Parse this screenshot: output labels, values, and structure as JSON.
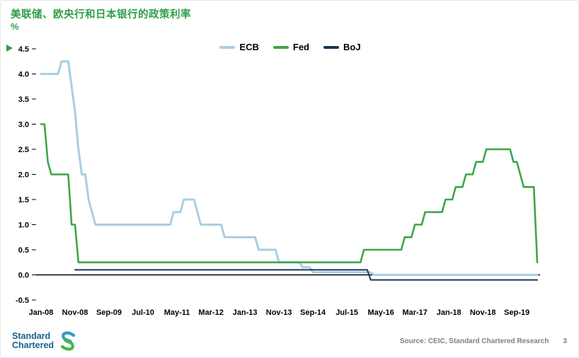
{
  "header": {
    "title": "美联储、欧央行和日本银行的政策利率",
    "unit": "%"
  },
  "chart_data": {
    "type": "line",
    "title": "美联储、欧央行和日本银行的政策利率",
    "ylabel": "%",
    "x_unit": "month",
    "x_start": "Jan-08",
    "x_end": "Mar-20",
    "x_ticks": [
      "Jan-08",
      "Nov-08",
      "Sep-09",
      "Jul-10",
      "May-11",
      "Mar-12",
      "Jan-13",
      "Nov-13",
      "Sep-14",
      "Jul-15",
      "May-16",
      "Mar-17",
      "Jan-18",
      "Nov-18",
      "Sep-19"
    ],
    "y_ticks": [
      4.5,
      4.0,
      3.5,
      3.0,
      2.5,
      2.0,
      1.5,
      1.0,
      0.5,
      0.0,
      -0.5
    ],
    "ylim": [
      -0.5,
      4.5
    ],
    "grid": false,
    "legend_position": "top-center",
    "series": [
      {
        "name": "ECB",
        "color": "#a9cee4",
        "width": 3,
        "steps": [
          [
            "Jan-08",
            4.0
          ],
          [
            "Jul-08",
            4.25
          ],
          [
            "Oct-08",
            3.75
          ],
          [
            "Nov-08",
            3.25
          ],
          [
            "Dec-08",
            2.5
          ],
          [
            "Jan-09",
            2.0
          ],
          [
            "Mar-09",
            1.5
          ],
          [
            "Apr-09",
            1.25
          ],
          [
            "May-09",
            1.0
          ],
          [
            "Apr-11",
            1.25
          ],
          [
            "Jul-11",
            1.5
          ],
          [
            "Nov-11",
            1.25
          ],
          [
            "Dec-11",
            1.0
          ],
          [
            "Jul-12",
            0.75
          ],
          [
            "May-13",
            0.5
          ],
          [
            "Nov-13",
            0.25
          ],
          [
            "Jun-14",
            0.15
          ],
          [
            "Sep-14",
            0.05
          ],
          [
            "Mar-16",
            0.0
          ]
        ]
      },
      {
        "name": "Fed",
        "color": "#3ea648",
        "width": 2.6,
        "steps": [
          [
            "Jan-08",
            3.0
          ],
          [
            "Mar-08",
            2.25
          ],
          [
            "Apr-08",
            2.0
          ],
          [
            "Oct-08",
            1.0
          ],
          [
            "Dec-08",
            0.25
          ],
          [
            "Dec-15",
            0.5
          ],
          [
            "Dec-16",
            0.75
          ],
          [
            "Mar-17",
            1.0
          ],
          [
            "Jun-17",
            1.25
          ],
          [
            "Dec-17",
            1.5
          ],
          [
            "Mar-18",
            1.75
          ],
          [
            "Jun-18",
            2.0
          ],
          [
            "Sep-18",
            2.25
          ],
          [
            "Dec-18",
            2.5
          ],
          [
            "Aug-19",
            2.25
          ],
          [
            "Oct-19",
            2.0
          ],
          [
            "Nov-19",
            1.75
          ],
          [
            "Mar-20",
            0.25
          ]
        ]
      },
      {
        "name": "BoJ",
        "color": "#17365d",
        "width": 2,
        "steps": [
          [
            "Nov-08",
            0.1
          ],
          [
            "Feb-16",
            -0.1
          ]
        ]
      }
    ]
  },
  "footer": {
    "logo_line1": "Standard",
    "logo_line2": "Chartered",
    "source": "Source: CEIC, Standard Chartered Research",
    "page_number": "3"
  },
  "colors": {
    "title_green": "#2f9e49",
    "axis_text": "#000000",
    "source_text": "#7f7f7f",
    "logo_blue": "#15618e",
    "logo_mark_green": "#46b749",
    "logo_mark_blue": "#2f9cc9"
  }
}
